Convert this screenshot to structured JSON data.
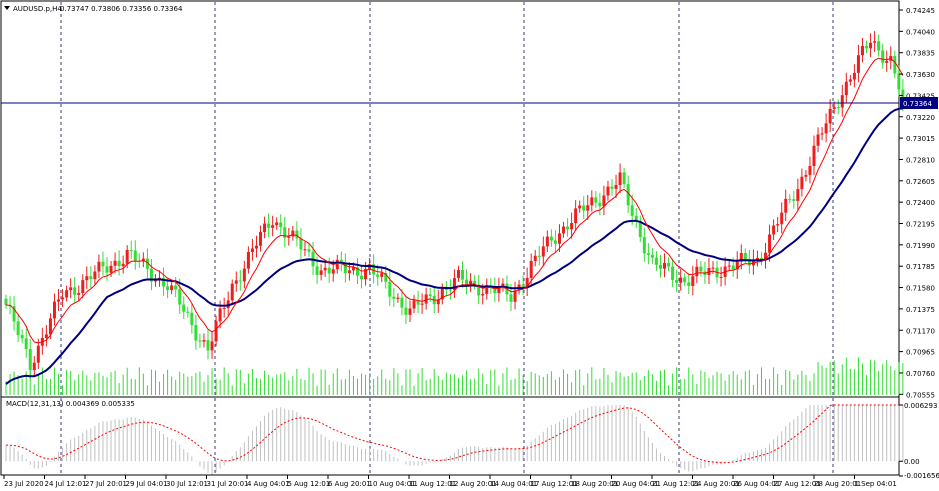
{
  "price_panel": {
    "symbol_label": "AUDUSD.p,H4",
    "ohlc_label": "0.73747 0.73806 0.73356 0.73364",
    "current_price_label": "0.73364",
    "price_levels": [
      "0.74245",
      "0.74040",
      "0.73835",
      "0.73630",
      "0.73425",
      "0.73220",
      "0.73015",
      "0.72810",
      "0.72605",
      "0.72400",
      "0.72195",
      "0.71990",
      "0.71785",
      "0.71580",
      "0.71375",
      "0.71170",
      "0.70965",
      "0.70760",
      "0.70555"
    ]
  },
  "macd_panel": {
    "label": "MACD(12,31,13) 0.004369 0.005335",
    "levels": [
      "0.006293",
      "0.00",
      "-0.001656"
    ]
  },
  "time_axis": {
    "labels": [
      "23 Jul 2020",
      "24 Jul 12:01",
      "27 Jul 20:01",
      "29 Jul 04:01",
      "30 Jul 12:01",
      "31 Jul 20:01",
      "4 Aug 04:01",
      "5 Aug 12:01",
      "6 Aug 20:01",
      "10 Aug 04:01",
      "11 Aug 12:01",
      "12 Aug 20:01",
      "14 Aug 04:01",
      "17 Aug 12:01",
      "18 Aug 20:01",
      "20 Aug 04:01",
      "21 Aug 12:01",
      "24 Aug 20:01",
      "26 Aug 04:01",
      "27 Aug 12:01",
      "28 Aug 20:01",
      "1 Sep 04:01"
    ]
  },
  "colors": {
    "bull_candle": "#ef1e1e",
    "bear_candle": "#33dd33",
    "ma_slow": "#00007f",
    "ma_fast": "#ff0000",
    "volume": "#33dd33",
    "macd_hist": "#c0c0c0",
    "macd_signal": "#ff0000",
    "grid": "#3a3a7a",
    "price_line": "#000080"
  },
  "chart_data": {
    "type": "candlestick",
    "title": "AUDUSD.p,H4",
    "ylim": [
      0.70555,
      0.74245
    ],
    "macd_ylim": [
      -0.001656,
      0.006293
    ],
    "key_closes": [
      {
        "index": 0,
        "close": 0.7141
      },
      {
        "index": 6,
        "close": 0.7085
      },
      {
        "index": 14,
        "close": 0.7151
      },
      {
        "index": 30,
        "close": 0.719
      },
      {
        "index": 40,
        "close": 0.716
      },
      {
        "index": 50,
        "close": 0.7098
      },
      {
        "index": 56,
        "close": 0.716
      },
      {
        "index": 66,
        "close": 0.7225
      },
      {
        "index": 78,
        "close": 0.7175
      },
      {
        "index": 90,
        "close": 0.7175
      },
      {
        "index": 100,
        "close": 0.7135
      },
      {
        "index": 112,
        "close": 0.7165
      },
      {
        "index": 125,
        "close": 0.715
      },
      {
        "index": 135,
        "close": 0.7205
      },
      {
        "index": 145,
        "close": 0.724
      },
      {
        "index": 152,
        "close": 0.726
      },
      {
        "index": 160,
        "close": 0.718
      },
      {
        "index": 168,
        "close": 0.7165
      },
      {
        "index": 176,
        "close": 0.7175
      },
      {
        "index": 186,
        "close": 0.7185
      },
      {
        "index": 196,
        "close": 0.7255
      },
      {
        "index": 206,
        "close": 0.734
      },
      {
        "index": 214,
        "close": 0.7395
      },
      {
        "index": 219,
        "close": 0.7376
      },
      {
        "index": 222,
        "close": 0.73364
      }
    ],
    "ma_slow_start": 0.7065,
    "ma_slow_end": 0.732,
    "last_close": 0.73364
  }
}
